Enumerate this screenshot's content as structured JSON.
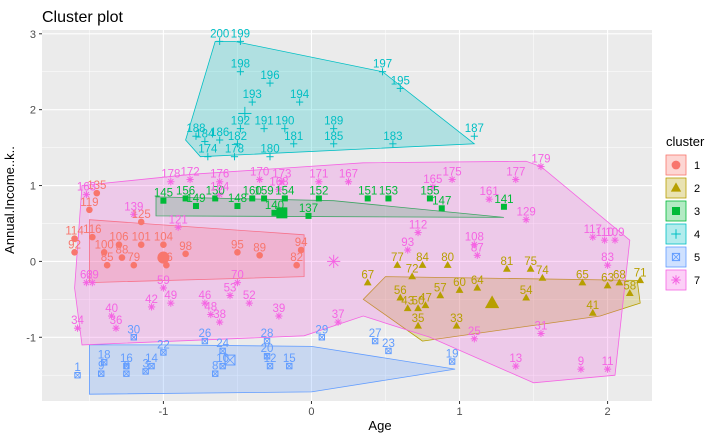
{
  "chart_data": {
    "type": "scatter",
    "title": "Cluster plot",
    "xlabel": "Age",
    "ylabel": "Annual.Income..k..",
    "xlim": [
      -1.82,
      2.3
    ],
    "ylim": [
      -1.84,
      3.05
    ],
    "x_ticks": [
      -1,
      0,
      1,
      2
    ],
    "y_ticks": [
      -1,
      0,
      1,
      2,
      3
    ],
    "grid": true,
    "legend": {
      "title": "cluster",
      "position": "right"
    },
    "series": [
      {
        "name": "1",
        "color": "#F8766D",
        "shape": "circle",
        "centroid": [
          -1.0,
          0.05
        ],
        "hull": [
          [
            -1.5,
            0.55
          ],
          [
            -0.05,
            0.35
          ],
          [
            -0.05,
            -0.2
          ],
          [
            -1.5,
            -0.28
          ]
        ],
        "points": [
          {
            "label": "135",
            "x": -1.45,
            "y": 0.9
          },
          {
            "label": "119",
            "x": -1.5,
            "y": 0.68
          },
          {
            "label": "125",
            "x": -1.15,
            "y": 0.52
          },
          {
            "label": "114",
            "x": -1.6,
            "y": 0.3
          },
          {
            "label": "116",
            "x": -1.48,
            "y": 0.32
          },
          {
            "label": "106",
            "x": -1.3,
            "y": 0.22
          },
          {
            "label": "101",
            "x": -1.15,
            "y": 0.22
          },
          {
            "label": "104",
            "x": -1.0,
            "y": 0.22
          },
          {
            "label": "92",
            "x": -1.6,
            "y": 0.12
          },
          {
            "label": "100",
            "x": -1.4,
            "y": 0.12
          },
          {
            "label": "98",
            "x": -0.85,
            "y": 0.1
          },
          {
            "label": "88",
            "x": -1.28,
            "y": 0.05
          },
          {
            "label": "95",
            "x": -0.5,
            "y": 0.12
          },
          {
            "label": "89",
            "x": -0.35,
            "y": 0.08
          },
          {
            "label": "94",
            "x": -0.07,
            "y": 0.15
          },
          {
            "label": "85",
            "x": -1.38,
            "y": -0.05
          },
          {
            "label": "79",
            "x": -1.2,
            "y": -0.05
          },
          {
            "label": "76",
            "x": -0.98,
            "y": -0.05
          },
          {
            "label": "82",
            "x": -0.1,
            "y": -0.05
          }
        ]
      },
      {
        "name": "2",
        "color": "#B79F00",
        "shape": "triangle",
        "centroid": [
          1.22,
          -0.55
        ],
        "hull": [
          [
            0.5,
            -0.2
          ],
          [
            2.2,
            -0.25
          ],
          [
            2.22,
            -0.55
          ],
          [
            1.95,
            -0.72
          ],
          [
            0.75,
            -1.05
          ],
          [
            0.35,
            -0.5
          ]
        ],
        "points": [
          {
            "label": "77",
            "x": 0.58,
            "y": -0.05
          },
          {
            "label": "84",
            "x": 0.75,
            "y": -0.05
          },
          {
            "label": "80",
            "x": 0.92,
            "y": -0.05
          },
          {
            "label": "72",
            "x": 0.68,
            "y": -0.2
          },
          {
            "label": "67",
            "x": 0.38,
            "y": -0.28
          },
          {
            "label": "81",
            "x": 1.32,
            "y": -0.1
          },
          {
            "label": "75",
            "x": 1.48,
            "y": -0.1
          },
          {
            "label": "74",
            "x": 1.56,
            "y": -0.22
          },
          {
            "label": "65",
            "x": 1.83,
            "y": -0.28
          },
          {
            "label": "71",
            "x": 2.22,
            "y": -0.25
          },
          {
            "label": "68",
            "x": 2.08,
            "y": -0.28
          },
          {
            "label": "63",
            "x": 2.0,
            "y": -0.32
          },
          {
            "label": "58",
            "x": 2.15,
            "y": -0.42
          },
          {
            "label": "64",
            "x": 1.12,
            "y": -0.35
          },
          {
            "label": "60",
            "x": 1.0,
            "y": -0.38
          },
          {
            "label": "56",
            "x": 0.6,
            "y": -0.48
          },
          {
            "label": "57",
            "x": 0.87,
            "y": -0.45
          },
          {
            "label": "54",
            "x": 1.45,
            "y": -0.48
          },
          {
            "label": "41",
            "x": 1.9,
            "y": -0.68
          },
          {
            "label": "47",
            "x": 0.77,
            "y": -0.58
          },
          {
            "label": "43",
            "x": 0.65,
            "y": -0.62
          },
          {
            "label": "50",
            "x": 0.72,
            "y": -0.62
          },
          {
            "label": "35",
            "x": 0.72,
            "y": -0.85
          },
          {
            "label": "33",
            "x": 0.98,
            "y": -0.85
          }
        ]
      },
      {
        "name": "3",
        "color": "#00BA38",
        "shape": "square",
        "centroid": [
          -0.2,
          0.64
        ],
        "hull": [
          [
            -1.05,
            0.85
          ],
          [
            0.15,
            0.8
          ],
          [
            1.3,
            0.58
          ],
          [
            -1.05,
            0.6
          ]
        ],
        "points": [
          {
            "label": "145",
            "x": -1.0,
            "y": 0.8
          },
          {
            "label": "156",
            "x": -0.85,
            "y": 0.83
          },
          {
            "label": "150",
            "x": -0.65,
            "y": 0.83
          },
          {
            "label": "160",
            "x": -0.4,
            "y": 0.83
          },
          {
            "label": "159",
            "x": -0.32,
            "y": 0.83
          },
          {
            "label": "154",
            "x": -0.18,
            "y": 0.83
          },
          {
            "label": "152",
            "x": 0.05,
            "y": 0.83
          },
          {
            "label": "151",
            "x": 0.38,
            "y": 0.83
          },
          {
            "label": "153",
            "x": 0.52,
            "y": 0.83
          },
          {
            "label": "155",
            "x": 0.8,
            "y": 0.83
          },
          {
            "label": "149",
            "x": -0.78,
            "y": 0.73
          },
          {
            "label": "148",
            "x": -0.5,
            "y": 0.73
          },
          {
            "label": "140",
            "x": -0.25,
            "y": 0.64
          },
          {
            "label": "147",
            "x": 0.88,
            "y": 0.7
          },
          {
            "label": "141",
            "x": 1.3,
            "y": 0.72
          },
          {
            "label": "137",
            "x": -0.02,
            "y": 0.6
          }
        ]
      },
      {
        "name": "4",
        "color": "#00BFC4",
        "shape": "plus",
        "centroid": [
          -0.45,
          1.95
        ],
        "hull": [
          [
            -0.65,
            2.9
          ],
          [
            -0.52,
            2.9
          ],
          [
            0.48,
            2.5
          ],
          [
            1.1,
            1.55
          ],
          [
            -0.75,
            1.38
          ],
          [
            -0.85,
            1.6
          ]
        ],
        "points": [
          {
            "label": "200",
            "x": -0.62,
            "y": 2.9
          },
          {
            "label": "199",
            "x": -0.48,
            "y": 2.9
          },
          {
            "label": "198",
            "x": -0.48,
            "y": 2.5
          },
          {
            "label": "196",
            "x": -0.28,
            "y": 2.35
          },
          {
            "label": "197",
            "x": 0.48,
            "y": 2.5
          },
          {
            "label": "195",
            "x": 0.6,
            "y": 2.28
          },
          {
            "label": "193",
            "x": -0.4,
            "y": 2.1
          },
          {
            "label": "194",
            "x": -0.08,
            "y": 2.1
          },
          {
            "label": "192",
            "x": -0.48,
            "y": 1.75
          },
          {
            "label": "191",
            "x": -0.32,
            "y": 1.75
          },
          {
            "label": "190",
            "x": -0.18,
            "y": 1.75
          },
          {
            "label": "189",
            "x": 0.15,
            "y": 1.75
          },
          {
            "label": "188",
            "x": -0.78,
            "y": 1.65
          },
          {
            "label": "186",
            "x": -0.62,
            "y": 1.6
          },
          {
            "label": "184",
            "x": -0.72,
            "y": 1.58
          },
          {
            "label": "182",
            "x": -0.5,
            "y": 1.55
          },
          {
            "label": "181",
            "x": -0.12,
            "y": 1.55
          },
          {
            "label": "185",
            "x": 0.15,
            "y": 1.55
          },
          {
            "label": "183",
            "x": 0.55,
            "y": 1.55
          },
          {
            "label": "187",
            "x": 1.1,
            "y": 1.65
          },
          {
            "label": "180",
            "x": -0.28,
            "y": 1.38
          },
          {
            "label": "174",
            "x": -0.7,
            "y": 1.38
          },
          {
            "label": "178",
            "x": -0.52,
            "y": 1.38
          }
        ]
      },
      {
        "name": "5",
        "color": "#619CFF",
        "shape": "square-x",
        "centroid": [
          -0.55,
          -1.3
        ],
        "hull": [
          [
            -1.5,
            -1.1
          ],
          [
            -1.0,
            -1.1
          ],
          [
            0.0,
            -1.12
          ],
          [
            0.97,
            -1.42
          ],
          [
            0.0,
            -1.72
          ],
          [
            -1.5,
            -1.75
          ]
        ],
        "points": [
          {
            "label": "30",
            "x": -1.2,
            "y": -1.0
          },
          {
            "label": "26",
            "x": -0.72,
            "y": -1.05
          },
          {
            "label": "28",
            "x": -0.3,
            "y": -1.05
          },
          {
            "label": "29",
            "x": 0.07,
            "y": -1.0
          },
          {
            "label": "27",
            "x": 0.43,
            "y": -1.05
          },
          {
            "label": "22",
            "x": -1.0,
            "y": -1.2
          },
          {
            "label": "24",
            "x": -0.6,
            "y": -1.18
          },
          {
            "label": "23",
            "x": 0.52,
            "y": -1.18
          },
          {
            "label": "18",
            "x": -1.4,
            "y": -1.33
          },
          {
            "label": "16",
            "x": -1.25,
            "y": -1.38
          },
          {
            "label": "14",
            "x": -1.08,
            "y": -1.38
          },
          {
            "label": "10",
            "x": -0.6,
            "y": -1.38
          },
          {
            "label": "12",
            "x": -0.28,
            "y": -1.38
          },
          {
            "label": "15",
            "x": -0.15,
            "y": -1.38
          },
          {
            "label": "19",
            "x": 0.95,
            "y": -1.32
          },
          {
            "label": "20",
            "x": -0.3,
            "y": -1.25
          },
          {
            "label": "1",
            "x": -1.58,
            "y": -1.5
          },
          {
            "label": "9",
            "x": -1.42,
            "y": -1.48
          },
          {
            "label": "6",
            "x": -1.25,
            "y": -1.48
          },
          {
            "label": "3",
            "x": -1.12,
            "y": -1.45
          },
          {
            "label": "8",
            "x": -0.65,
            "y": -1.48
          }
        ]
      },
      {
        "name": "7",
        "color": "#F564E3",
        "shape": "asterisk",
        "centroid": [
          0.15,
          0.0
        ],
        "hull": [
          [
            -1.55,
            1.0
          ],
          [
            -0.8,
            1.15
          ],
          [
            0.35,
            1.3
          ],
          [
            1.45,
            1.32
          ],
          [
            1.55,
            1.25
          ],
          [
            2.15,
            0.28
          ],
          [
            2.05,
            -1.5
          ],
          [
            1.5,
            -1.6
          ],
          [
            0.8,
            -1.0
          ],
          [
            0.35,
            -0.72
          ],
          [
            -0.05,
            -0.98
          ],
          [
            -1.55,
            -1.1
          ],
          [
            -1.6,
            -0.35
          ]
        ],
        "points": [
          {
            "label": "179",
            "x": 1.55,
            "y": 1.25
          },
          {
            "label": "178",
            "x": -0.95,
            "y": 1.05
          },
          {
            "label": "172",
            "x": -0.82,
            "y": 1.08
          },
          {
            "label": "176",
            "x": -0.62,
            "y": 1.05
          },
          {
            "label": "170",
            "x": -0.35,
            "y": 1.08
          },
          {
            "label": "171",
            "x": 0.05,
            "y": 1.05
          },
          {
            "label": "167",
            "x": 0.25,
            "y": 1.05
          },
          {
            "label": "175",
            "x": 0.95,
            "y": 1.08
          },
          {
            "label": "177",
            "x": 1.38,
            "y": 1.08
          },
          {
            "label": "173",
            "x": -0.2,
            "y": 1.05
          },
          {
            "label": "168",
            "x": -0.22,
            "y": 0.95
          },
          {
            "label": "165",
            "x": 0.82,
            "y": 0.98
          },
          {
            "label": "163",
            "x": -1.52,
            "y": 0.88
          },
          {
            "label": "164",
            "x": -0.62,
            "y": 0.88
          },
          {
            "label": "161",
            "x": 1.2,
            "y": 0.82
          },
          {
            "label": "139",
            "x": -1.2,
            "y": 0.62
          },
          {
            "label": "129",
            "x": 1.45,
            "y": 0.55
          },
          {
            "label": "121",
            "x": -0.9,
            "y": 0.45
          },
          {
            "label": "117",
            "x": 1.9,
            "y": 0.32
          },
          {
            "label": "109",
            "x": 2.05,
            "y": 0.28
          },
          {
            "label": "110",
            "x": 1.98,
            "y": 0.28
          },
          {
            "label": "108",
            "x": 1.1,
            "y": 0.22
          },
          {
            "label": "112",
            "x": 0.72,
            "y": 0.38
          },
          {
            "label": "93",
            "x": 0.65,
            "y": 0.15
          },
          {
            "label": "87",
            "x": 1.12,
            "y": 0.08
          },
          {
            "label": "83",
            "x": 2.0,
            "y": -0.05
          },
          {
            "label": "59",
            "x": -1.0,
            "y": -0.35
          },
          {
            "label": "62",
            "x": -1.52,
            "y": -0.28
          },
          {
            "label": "69",
            "x": -1.48,
            "y": -0.28
          },
          {
            "label": "49",
            "x": -0.95,
            "y": -0.55
          },
          {
            "label": "46",
            "x": -0.72,
            "y": -0.55
          },
          {
            "label": "53",
            "x": -0.55,
            "y": -0.45
          },
          {
            "label": "52",
            "x": -0.42,
            "y": -0.55
          },
          {
            "label": "42",
            "x": -1.08,
            "y": -0.6
          },
          {
            "label": "48",
            "x": -0.68,
            "y": -0.7
          },
          {
            "label": "38",
            "x": -0.62,
            "y": -0.8
          },
          {
            "label": "40",
            "x": -1.35,
            "y": -0.72
          },
          {
            "label": "39",
            "x": -0.22,
            "y": -0.72
          },
          {
            "label": "37",
            "x": 0.18,
            "y": -0.8
          },
          {
            "label": "34",
            "x": -1.58,
            "y": -0.88
          },
          {
            "label": "36",
            "x": -1.32,
            "y": -0.88
          },
          {
            "label": "25",
            "x": 1.1,
            "y": -1.02
          },
          {
            "label": "31",
            "x": 1.55,
            "y": -0.95
          },
          {
            "label": "13",
            "x": 1.38,
            "y": -1.38
          },
          {
            "label": "9",
            "x": 1.82,
            "y": -1.42
          },
          {
            "label": "11",
            "x": 2.0,
            "y": -1.42
          },
          {
            "label": "70",
            "x": -0.5,
            "y": -0.28
          }
        ]
      }
    ],
    "legend_items": [
      {
        "label": "1",
        "color": "#F8766D",
        "shape": "circle"
      },
      {
        "label": "2",
        "color": "#B79F00",
        "shape": "triangle"
      },
      {
        "label": "3",
        "color": "#00BA38",
        "shape": "square"
      },
      {
        "label": "4",
        "color": "#00BFC4",
        "shape": "plus"
      },
      {
        "label": "5",
        "color": "#619CFF",
        "shape": "square-x"
      },
      {
        "label": "7",
        "color": "#F564E3",
        "shape": "asterisk"
      }
    ]
  }
}
